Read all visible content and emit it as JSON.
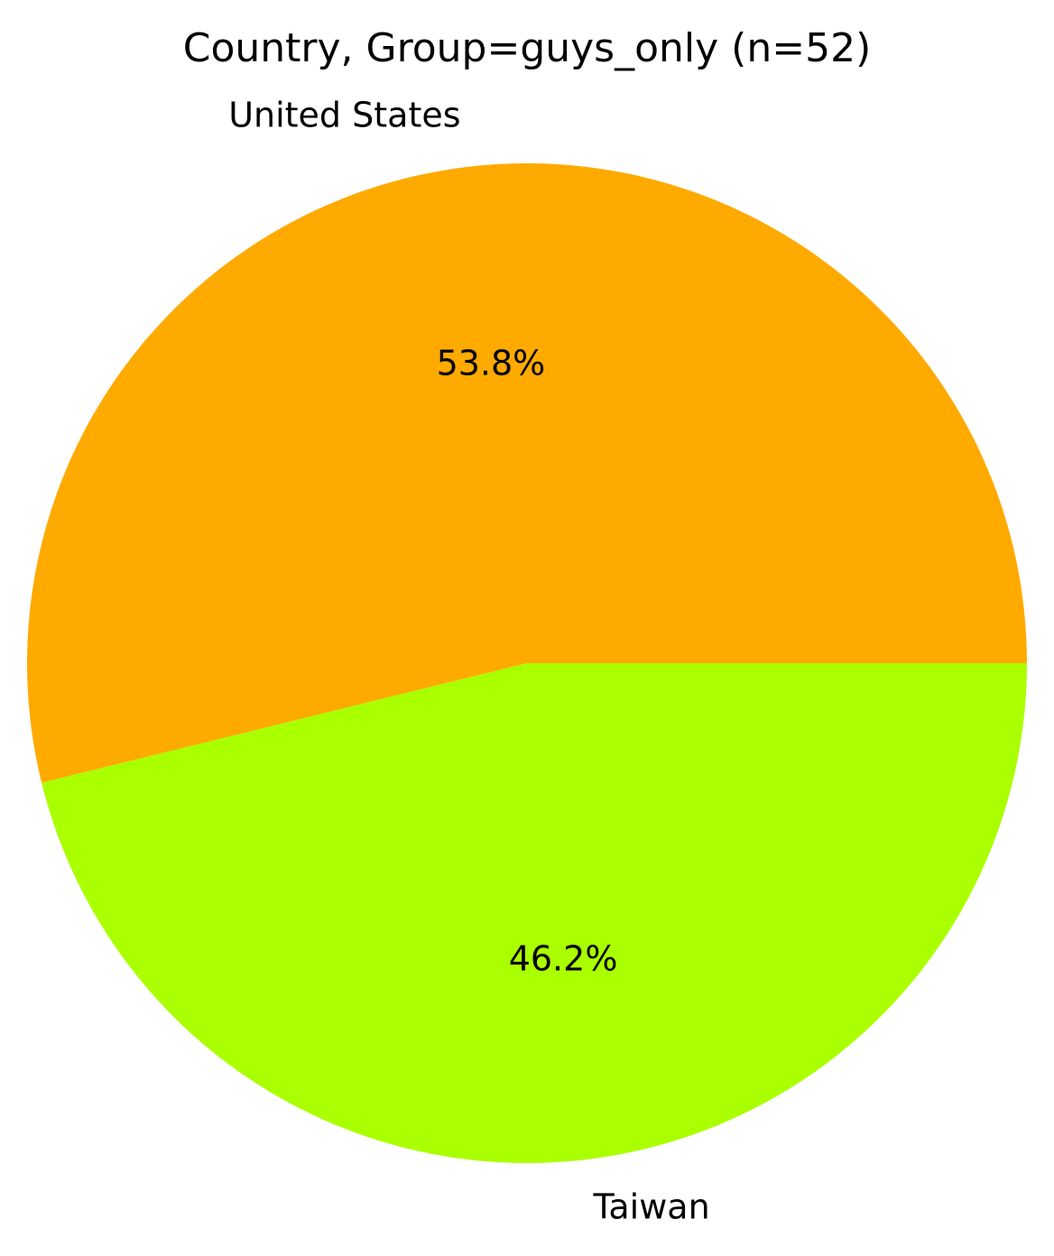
{
  "chart_data": {
    "type": "pie",
    "title": "Country, Group=guys_only (n=52)",
    "start_angle_deg": 0,
    "direction": "counterclockwise",
    "slices": [
      {
        "label": "United States",
        "value": 28,
        "percent_label": "53.8%",
        "color": "#ffaa00"
      },
      {
        "label": "Taiwan",
        "value": 24,
        "percent_label": "46.2%",
        "color": "#aaff00"
      }
    ],
    "legend": "none"
  }
}
